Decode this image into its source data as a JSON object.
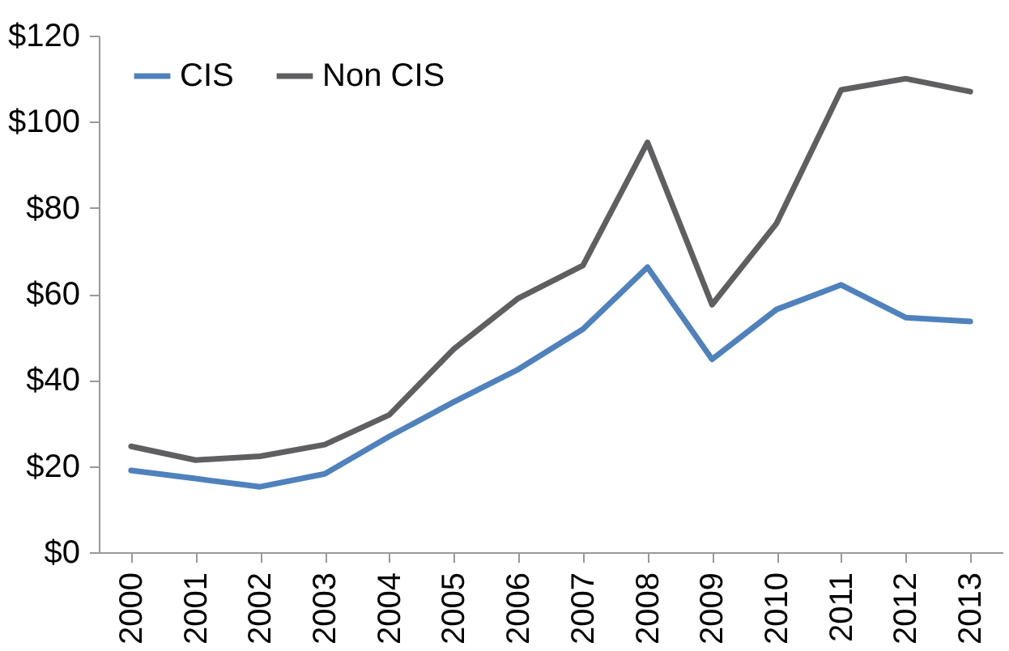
{
  "chart_data": {
    "type": "line",
    "categories": [
      "2000",
      "2001",
      "2002",
      "2003",
      "2004",
      "2005",
      "2006",
      "2007",
      "2008",
      "2009",
      "2010",
      "2011",
      "2012",
      "2013"
    ],
    "series": [
      {
        "name": "CIS",
        "color": "#4f81bd",
        "values": [
          19.0,
          17.1,
          15.2,
          18.2,
          26.9,
          34.9,
          42.5,
          51.8,
          66.2,
          44.8,
          56.4,
          62.1,
          54.5,
          53.6
        ]
      },
      {
        "name": "Non CIS",
        "color": "#5f5f62",
        "values": [
          24.6,
          21.4,
          22.3,
          25.0,
          31.9,
          47.2,
          59.0,
          66.6,
          95.2,
          57.5,
          76.4,
          107.4,
          110.0,
          107.0
        ]
      }
    ],
    "ylim": [
      0,
      120
    ],
    "yticks": [
      {
        "value": 0,
        "label": "$0"
      },
      {
        "value": 20,
        "label": "$20"
      },
      {
        "value": 40,
        "label": "$40"
      },
      {
        "value": 60,
        "label": "$60"
      },
      {
        "value": 80,
        "label": "$80"
      },
      {
        "value": 100,
        "label": "$100"
      },
      {
        "value": 120,
        "label": "$120"
      }
    ],
    "grid": false,
    "legend": "top left",
    "marker": "none",
    "line_style": "solid"
  }
}
